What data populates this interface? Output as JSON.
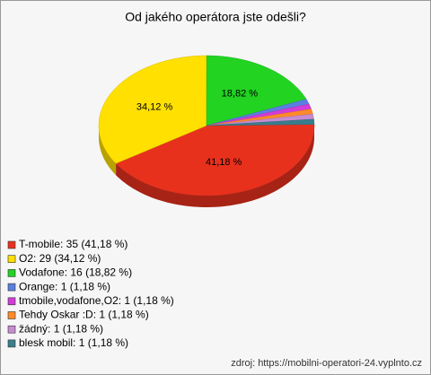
{
  "chart_data": {
    "type": "pie",
    "title": "Od jakého operátora jste odešli?",
    "categories": [
      "T-mobile",
      "O2",
      "Vodafone",
      "Orange",
      "tmobile,vodafone,O2",
      "Tehdy Oskar :D",
      "žádný",
      "blesk mobil"
    ],
    "values": [
      35,
      29,
      16,
      1,
      1,
      1,
      1,
      1
    ],
    "value_labels": [
      "41,18 %",
      "34,12 %",
      "18,82 %",
      null,
      null,
      null,
      null,
      null
    ],
    "legend": [
      "T-mobile: 35 (41,18 %)",
      "O2: 29 (34,12 %)",
      "Vodafone: 16 (18,82 %)",
      "Orange: 1 (1,18 %)",
      "tmobile,vodafone,O2: 1 (1,18 %)",
      "Tehdy Oskar :D: 1 (1,18 %)",
      "žádný: 1 (1,18 %)",
      "blesk mobil: 1 (1,18 %)"
    ],
    "colors": [
      "#e8311d",
      "#ffe000",
      "#22d322",
      "#5a7fe0",
      "#d23cd8",
      "#ff8a2a",
      "#c78bd0",
      "#3a7d8c"
    ],
    "source": "zdroj: https://mobilni-operatori-24.vyplnto.cz"
  }
}
